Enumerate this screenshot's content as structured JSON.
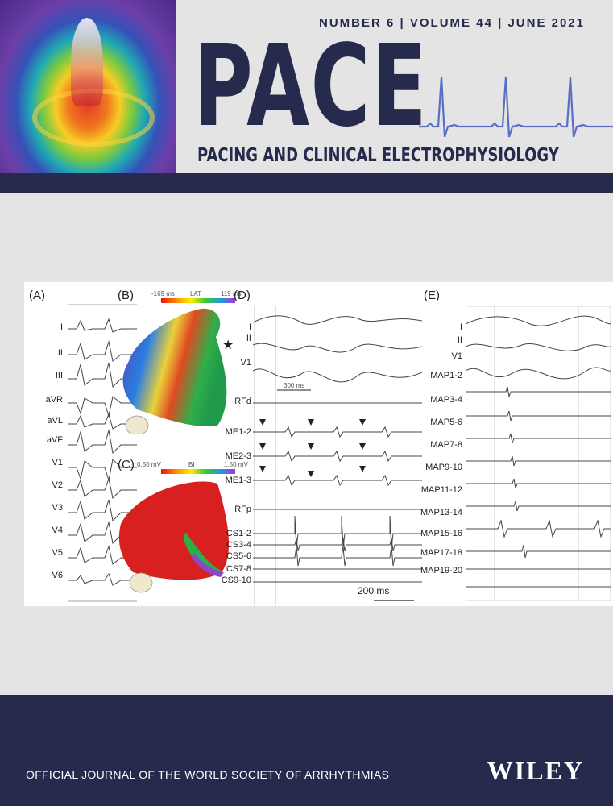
{
  "header": {
    "issue_line": "NUMBER 6 | VOLUME 44 | JUNE 2021",
    "title": "PACE",
    "subtitle": "PACING AND CLINICAL ELECTROPHYSIOLOGY"
  },
  "figure": {
    "panel_a": {
      "label": "(A)",
      "leads": [
        "I",
        "II",
        "III",
        "aVR",
        "aVL",
        "aVF",
        "V1",
        "V2",
        "V3",
        "V4",
        "V5",
        "V6"
      ]
    },
    "panel_b": {
      "label": "(B)",
      "cb_min": "-169 ms",
      "cb_name": "LAT",
      "cb_max": "119 ms",
      "star": "★"
    },
    "panel_c": {
      "label": "(C)",
      "cb_min": "0.50 mV",
      "cb_name": "BI",
      "cb_max": "1.50 mV"
    },
    "panel_d": {
      "label": "(D)",
      "leads": [
        "I",
        "II",
        "V1",
        "RFd",
        "ME1-2",
        "ME2-3",
        "ME1-3",
        "RFp",
        "CS1-2",
        "CS3-4",
        "CS5-6",
        "CS7-8",
        "CS9-10"
      ],
      "scale_300": "300 ms",
      "scale_200": "200 ms"
    },
    "panel_e": {
      "label": "(E)",
      "leads": [
        "I",
        "II",
        "V1",
        "MAP1-2",
        "MAP3-4",
        "MAP5-6",
        "MAP7-8",
        "MAP9-10",
        "MAP11-12",
        "MAP13-14",
        "MAP15-16",
        "MAP17-18",
        "MAP19-20"
      ]
    }
  },
  "footer": {
    "journal_note": "OFFICIAL JOURNAL OF THE WORLD SOCIETY OF ARRHYTHMIAS",
    "publisher": "WILEY"
  },
  "colors": {
    "navy": "#262a4c",
    "ecg_line": "#5a6fc4",
    "background": "#e4e4e4"
  }
}
